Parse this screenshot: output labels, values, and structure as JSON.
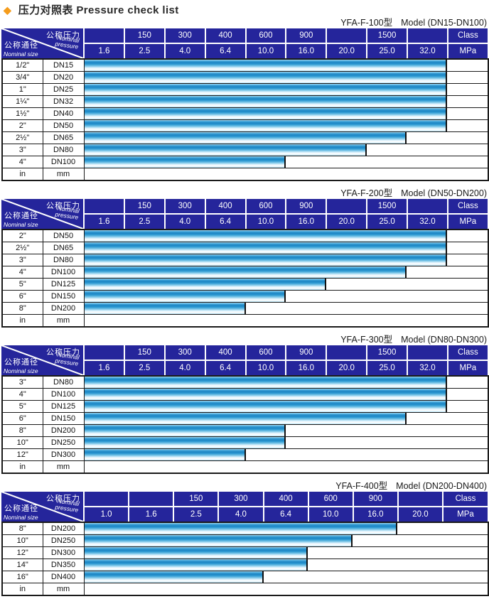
{
  "page": {
    "title_zh": "压力对照表",
    "title_en": "Pressure check list",
    "diamond_icon": "diamond"
  },
  "colors": {
    "accent_diamond": "#F59C1B",
    "header_bg": "#25259B",
    "bar_dark": "#1B85C4",
    "bar_light": "#FFFFFF",
    "table_border": "#1A1A1A"
  },
  "header_labels": {
    "nominal_pressure_zh": "公称压力",
    "nominal_pressure_en1": "Nominal",
    "nominal_pressure_en2": "pressure",
    "nominal_size_zh": "公称通径",
    "nominal_size_en": "Nominal size",
    "class_unit": "Class",
    "mpa_unit": "MPa"
  },
  "tables": [
    {
      "subtitle_model": "YFA-F-100型",
      "subtitle_range": "Model (DN15-DN100)",
      "class_row": [
        "",
        "150",
        "300",
        "400",
        "600",
        "900",
        "",
        "1500",
        "",
        "Class"
      ],
      "mpa_row": [
        "1.6",
        "2.5",
        "4.0",
        "6.4",
        "10.0",
        "16.0",
        "20.0",
        "25.0",
        "32.0",
        "MPa"
      ],
      "rows": [
        {
          "inch": "1/2\"",
          "dn": "DN15",
          "bar_cols": 9,
          "max_mpa": "32.0"
        },
        {
          "inch": "3/4\"",
          "dn": "DN20",
          "bar_cols": 9,
          "max_mpa": "32.0"
        },
        {
          "inch": "1\"",
          "dn": "DN25",
          "bar_cols": 9,
          "max_mpa": "32.0"
        },
        {
          "inch": "1¼\"",
          "dn": "DN32",
          "bar_cols": 9,
          "max_mpa": "32.0"
        },
        {
          "inch": "1½\"",
          "dn": "DN40",
          "bar_cols": 9,
          "max_mpa": "32.0"
        },
        {
          "inch": "2\"",
          "dn": "DN50",
          "bar_cols": 9,
          "max_mpa": "32.0"
        },
        {
          "inch": "2½\"",
          "dn": "DN65",
          "bar_cols": 8,
          "max_mpa": "25.0"
        },
        {
          "inch": "3\"",
          "dn": "DN80",
          "bar_cols": 7,
          "max_mpa": "20.0"
        },
        {
          "inch": "4\"",
          "dn": "DN100",
          "bar_cols": 5,
          "max_mpa": "10.0"
        },
        {
          "inch": "in",
          "dn": "mm",
          "bar_cols": 0,
          "max_mpa": ""
        }
      ]
    },
    {
      "subtitle_model": "YFA-F-200型",
      "subtitle_range": "Model (DN50-DN200)",
      "class_row": [
        "",
        "150",
        "300",
        "400",
        "600",
        "900",
        "",
        "1500",
        "",
        "Class"
      ],
      "mpa_row": [
        "1.6",
        "2.5",
        "4.0",
        "6.4",
        "10.0",
        "16.0",
        "20.0",
        "25.0",
        "32.0",
        "MPa"
      ],
      "rows": [
        {
          "inch": "2\"",
          "dn": "DN50",
          "bar_cols": 9,
          "max_mpa": "32.0"
        },
        {
          "inch": "2½\"",
          "dn": "DN65",
          "bar_cols": 9,
          "max_mpa": "32.0"
        },
        {
          "inch": "3\"",
          "dn": "DN80",
          "bar_cols": 9,
          "max_mpa": "32.0"
        },
        {
          "inch": "4\"",
          "dn": "DN100",
          "bar_cols": 8,
          "max_mpa": "25.0"
        },
        {
          "inch": "5\"",
          "dn": "DN125",
          "bar_cols": 6,
          "max_mpa": "16.0"
        },
        {
          "inch": "6\"",
          "dn": "DN150",
          "bar_cols": 5,
          "max_mpa": "10.0"
        },
        {
          "inch": "8\"",
          "dn": "DN200",
          "bar_cols": 4,
          "max_mpa": "6.4"
        },
        {
          "inch": "in",
          "dn": "mm",
          "bar_cols": 0,
          "max_mpa": ""
        }
      ]
    },
    {
      "subtitle_model": "YFA-F-300型",
      "subtitle_range": "Model (DN80-DN300)",
      "class_row": [
        "",
        "150",
        "300",
        "400",
        "600",
        "900",
        "",
        "1500",
        "",
        "Class"
      ],
      "mpa_row": [
        "1.6",
        "2.5",
        "4.0",
        "6.4",
        "10.0",
        "16.0",
        "20.0",
        "25.0",
        "32.0",
        "MPa"
      ],
      "rows": [
        {
          "inch": "3\"",
          "dn": "DN80",
          "bar_cols": 9,
          "max_mpa": "32.0"
        },
        {
          "inch": "4\"",
          "dn": "DN100",
          "bar_cols": 9,
          "max_mpa": "32.0"
        },
        {
          "inch": "5\"",
          "dn": "DN125",
          "bar_cols": 9,
          "max_mpa": "32.0"
        },
        {
          "inch": "6\"",
          "dn": "DN150",
          "bar_cols": 8,
          "max_mpa": "25.0"
        },
        {
          "inch": "8\"",
          "dn": "DN200",
          "bar_cols": 5,
          "max_mpa": "10.0"
        },
        {
          "inch": "10\"",
          "dn": "DN250",
          "bar_cols": 5,
          "max_mpa": "10.0"
        },
        {
          "inch": "12\"",
          "dn": "DN300",
          "bar_cols": 4,
          "max_mpa": "6.4"
        },
        {
          "inch": "in",
          "dn": "mm",
          "bar_cols": 0,
          "max_mpa": ""
        }
      ]
    },
    {
      "subtitle_model": "YFA-F-400型",
      "subtitle_range": "Model (DN200-DN400)",
      "class_row": [
        "",
        "",
        "150",
        "300",
        "400",
        "600",
        "900",
        "",
        "Class"
      ],
      "mpa_row": [
        "1.0",
        "1.6",
        "2.5",
        "4.0",
        "6.4",
        "10.0",
        "16.0",
        "20.0",
        "MPa"
      ],
      "rows": [
        {
          "inch": "8\"",
          "dn": "DN200",
          "bar_cols": 7,
          "max_mpa": "16.0"
        },
        {
          "inch": "10\"",
          "dn": "DN250",
          "bar_cols": 6,
          "max_mpa": "10.0"
        },
        {
          "inch": "12\"",
          "dn": "DN300",
          "bar_cols": 5,
          "max_mpa": "6.4"
        },
        {
          "inch": "14\"",
          "dn": "DN350",
          "bar_cols": 5,
          "max_mpa": "6.4"
        },
        {
          "inch": "16\"",
          "dn": "DN400",
          "bar_cols": 4,
          "max_mpa": "4.0"
        },
        {
          "inch": "in",
          "dn": "mm",
          "bar_cols": 0,
          "max_mpa": ""
        }
      ]
    }
  ]
}
